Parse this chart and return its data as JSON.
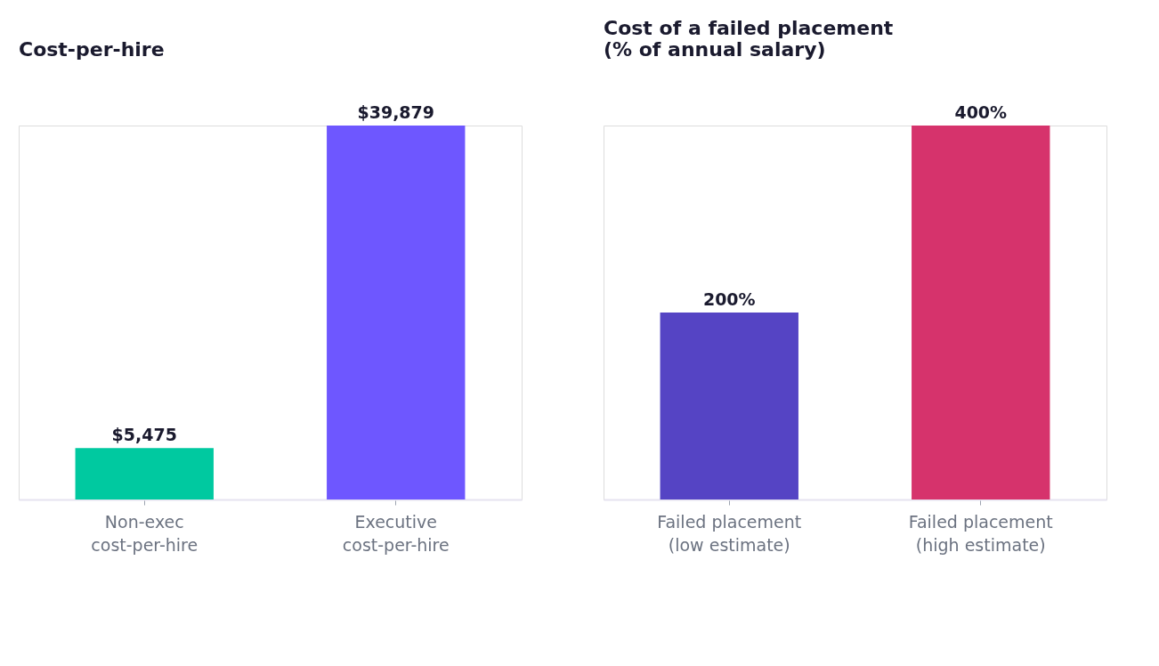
{
  "chart_data": [
    {
      "type": "bar",
      "title": "Cost-per-hire",
      "categories": [
        "Non-exec\ncost-per-hire",
        "Executive\ncost-per-hire"
      ],
      "values": [
        5475,
        39879
      ],
      "colors": [
        "#00c9a0",
        "#6e57ff"
      ],
      "value_labels": [
        "$5,475",
        "$39,879"
      ]
    },
    {
      "type": "bar",
      "title": "Cost of a failed placement\n(% of annual salary)",
      "categories": [
        "Failed placement\n(low estimate)",
        "Failed placement\n(high estimate)"
      ],
      "values": [
        200,
        400
      ],
      "colors": [
        "#5544c4",
        "#d6336c"
      ],
      "value_labels": [
        "200%",
        "400%"
      ]
    }
  ]
}
